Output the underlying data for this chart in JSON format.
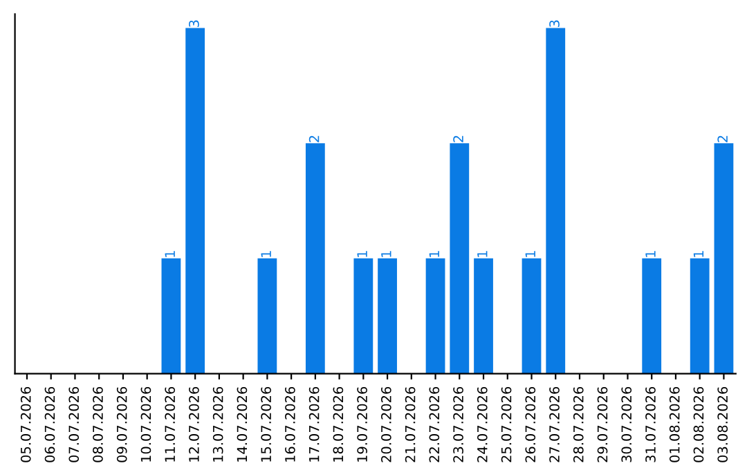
{
  "chart_data": {
    "type": "bar",
    "categories": [
      "05.07.2026",
      "06.07.2026",
      "07.07.2026",
      "08.07.2026",
      "09.07.2026",
      "10.07.2026",
      "11.07.2026",
      "12.07.2026",
      "13.07.2026",
      "14.07.2026",
      "15.07.2026",
      "16.07.2026",
      "17.07.2026",
      "18.07.2026",
      "19.07.2026",
      "20.07.2026",
      "21.07.2026",
      "22.07.2026",
      "23.07.2026",
      "24.07.2026",
      "25.07.2026",
      "26.07.2026",
      "27.07.2026",
      "28.07.2026",
      "29.07.2026",
      "30.07.2026",
      "31.07.2026",
      "01.08.2026",
      "02.08.2026",
      "03.08.2026"
    ],
    "values": [
      0,
      0,
      0,
      0,
      0,
      0,
      1,
      3,
      0,
      0,
      1,
      0,
      2,
      0,
      1,
      1,
      0,
      1,
      2,
      1,
      0,
      1,
      3,
      0,
      0,
      0,
      1,
      0,
      1,
      2
    ],
    "value_labels": [
      null,
      null,
      null,
      null,
      null,
      null,
      "1",
      "3",
      null,
      null,
      "1",
      null,
      "2",
      null,
      "1",
      "1",
      null,
      "1",
      "2",
      "1",
      null,
      "1",
      "3",
      null,
      null,
      null,
      "1",
      null,
      "1",
      "2"
    ],
    "color": "#0a7be4",
    "grid": false,
    "tick_labels": "x"
  }
}
